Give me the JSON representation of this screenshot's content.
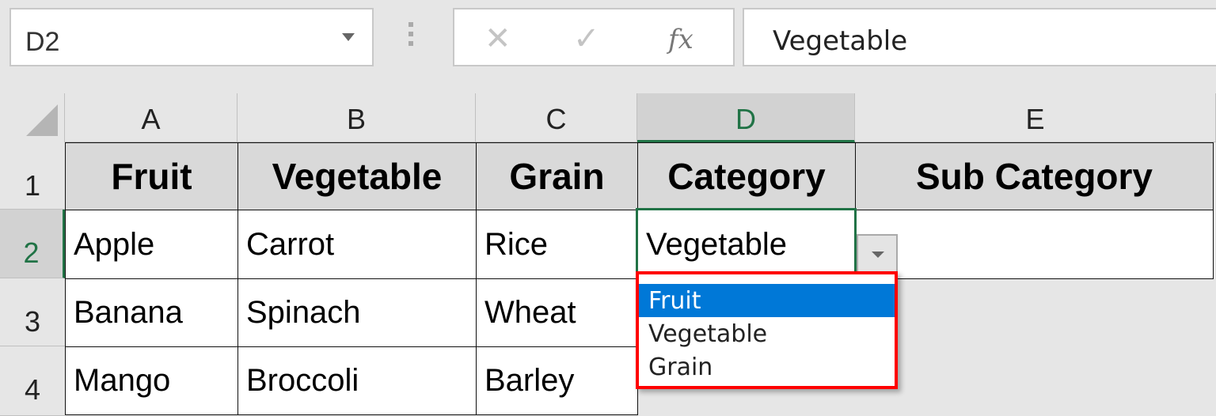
{
  "name_box": {
    "value": "D2"
  },
  "formula_bar": {
    "cancel_icon": "✕",
    "enter_icon": "✓",
    "fx_label": "fx",
    "value": "Vegetable"
  },
  "columns": [
    "A",
    "B",
    "C",
    "D",
    "E"
  ],
  "rows": [
    "1",
    "2",
    "3",
    "4"
  ],
  "cells": {
    "row1": [
      "Fruit",
      "Vegetable",
      "Grain",
      "Category",
      "Sub Category"
    ],
    "row2": [
      "Apple",
      "Carrot",
      "Rice",
      "Vegetable",
      ""
    ],
    "row3": [
      "Banana",
      "Spinach",
      "Wheat"
    ],
    "row4": [
      "Mango",
      "Broccoli",
      "Barley"
    ]
  },
  "dropdown": {
    "options": [
      "Fruit",
      "Vegetable",
      "Grain"
    ],
    "highlighted": "Fruit"
  },
  "colors": {
    "selection": "#217346",
    "highlight": "#0078d7",
    "annotation": "#ff0000"
  }
}
